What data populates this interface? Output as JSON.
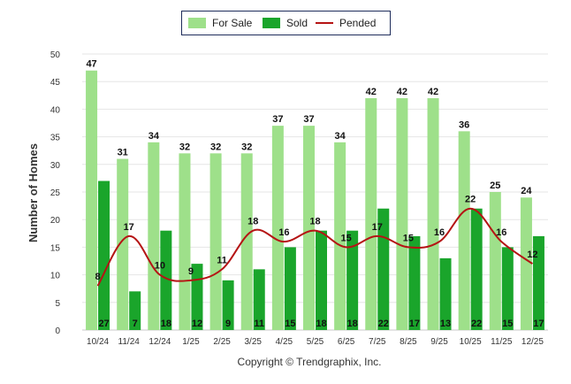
{
  "chart_data": {
    "type": "bar",
    "title": "",
    "xlabel": "",
    "ylabel": "Number of Homes",
    "ylim": [
      0,
      50
    ],
    "yticks": [
      0,
      5,
      10,
      15,
      20,
      25,
      30,
      35,
      40,
      45,
      50
    ],
    "categories": [
      "10/24",
      "11/24",
      "12/24",
      "1/25",
      "2/25",
      "3/25",
      "4/25",
      "5/25",
      "6/25",
      "7/25",
      "8/25",
      "9/25",
      "10/25",
      "11/25",
      "12/25"
    ],
    "series": [
      {
        "name": "For Sale",
        "kind": "bar",
        "color": "#9ee08a",
        "values": [
          47,
          31,
          34,
          32,
          32,
          32,
          37,
          37,
          34,
          42,
          42,
          42,
          36,
          25,
          24
        ]
      },
      {
        "name": "Sold",
        "kind": "bar",
        "color": "#1aa52b",
        "values": [
          27,
          7,
          18,
          12,
          9,
          11,
          15,
          18,
          18,
          22,
          17,
          13,
          22,
          15,
          17
        ]
      },
      {
        "name": "Pended",
        "kind": "line",
        "color": "#b51414",
        "values": [
          8,
          17,
          10,
          9,
          11,
          18,
          16,
          18,
          15,
          17,
          15,
          16,
          22,
          16,
          12
        ]
      }
    ],
    "legend": "top-center",
    "grid": true,
    "copyright": "Copyright © Trendgraphix, Inc."
  }
}
